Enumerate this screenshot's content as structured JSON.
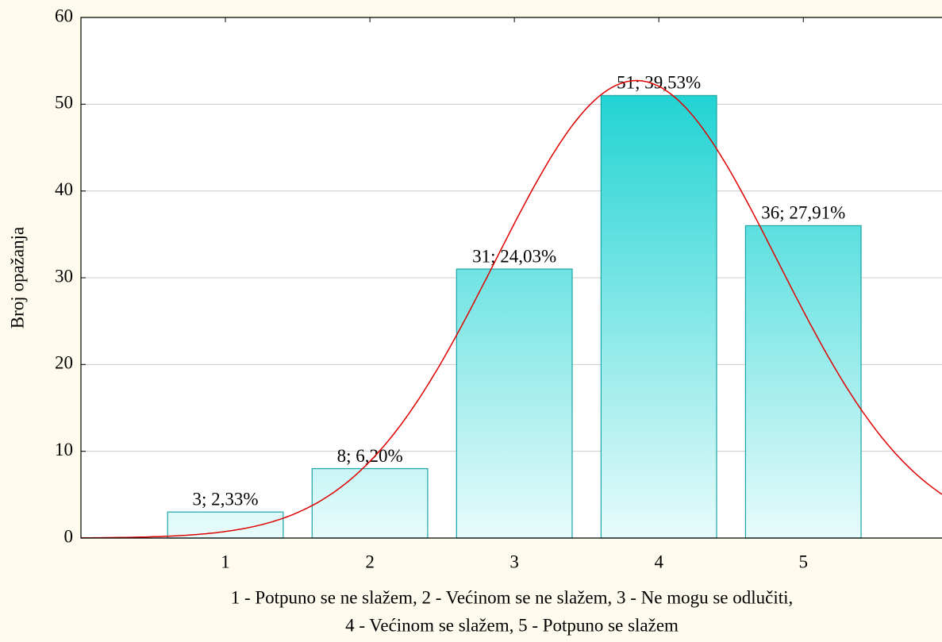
{
  "chart_data": {
    "type": "histogram",
    "ylabel": "Broj opažanja",
    "xlabel": [
      "1 - Potpuno se ne slažem, 2 - Većinom se ne slažem, 3 - Ne mogu se odlučiti,",
      "4 - Većinom se slažem, 5 - Potpuno se slažem"
    ],
    "x": [
      1,
      2,
      3,
      4,
      5
    ],
    "values": [
      3,
      8,
      31,
      51,
      36
    ],
    "value_labels": [
      "3; 2,33%",
      "8; 6,20%",
      "31; 24,03%",
      "51; 39,53%",
      "36; 27,91%"
    ],
    "xlim": [
      0,
      5.96
    ],
    "xticks": [
      1,
      2,
      3,
      4,
      5
    ],
    "ylim": [
      0,
      60
    ],
    "yticks": [
      0,
      10,
      20,
      30,
      40,
      50,
      60
    ],
    "grid": true,
    "color": "#22d3d3",
    "fit_color": "#e00000"
  }
}
